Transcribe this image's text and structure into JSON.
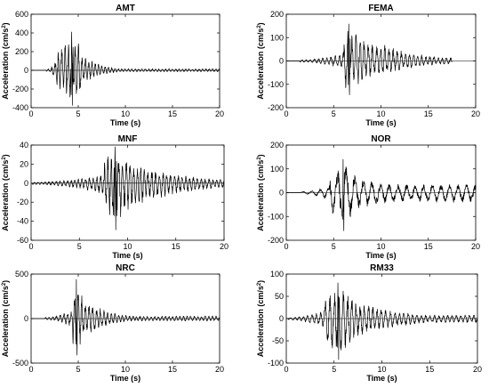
{
  "chart_data": [
    {
      "type": "line",
      "title": "AMT",
      "xlabel": "Time (s)",
      "ylabel_main": "Acceleration (cm/s",
      "ylabel_sup": "2",
      "ylabel_end": ")",
      "xlim": [
        0,
        20
      ],
      "ylim": [
        -400,
        600
      ],
      "xticks": [
        0,
        5,
        10,
        15,
        20
      ],
      "yticks": [
        -400,
        -200,
        0,
        200,
        400,
        600
      ],
      "grid": false,
      "series": [
        {
          "onset": 1.6,
          "end": 20,
          "peak_time": 4.3,
          "peak_pos": 410,
          "peak_neg": -375,
          "strong_start": 2.6,
          "strong_end": 5.3,
          "decay": 0.55,
          "coda": 0.05,
          "freq": 2.8,
          "seed": 11
        }
      ]
    },
    {
      "type": "line",
      "title": "FEMA",
      "xlabel": "Time (s)",
      "ylabel_main": "Acceleration (cm/s",
      "ylabel_sup": "2",
      "ylabel_end": ")",
      "xlim": [
        0,
        20
      ],
      "ylim": [
        -200,
        200
      ],
      "xticks": [
        0,
        5,
        10,
        15,
        20
      ],
      "yticks": [
        -200,
        -100,
        0,
        100,
        200
      ],
      "grid": false,
      "series": [
        {
          "onset": 1.4,
          "end": 17.5,
          "peak_time": 6.6,
          "peak_pos": 158,
          "peak_neg": -145,
          "strong_start": 6.1,
          "strong_end": 10.2,
          "decay": 0.25,
          "coda": 0.12,
          "freq": 2.3,
          "seed": 23
        }
      ]
    },
    {
      "type": "line",
      "title": "MNF",
      "xlabel": "Time (s)",
      "ylabel_main": "Acceleration (cm/s",
      "ylabel_sup": "2",
      "ylabel_end": ")",
      "xlim": [
        0,
        20
      ],
      "ylim": [
        -60,
        40
      ],
      "xticks": [
        0,
        5,
        10,
        15,
        20
      ],
      "yticks": [
        -60,
        -40,
        -20,
        0,
        20,
        40
      ],
      "grid": false,
      "series": [
        {
          "onset": 0.1,
          "end": 20,
          "peak_time": 8.7,
          "peak_pos": 38,
          "peak_neg": -49,
          "strong_start": 7.6,
          "strong_end": 11.2,
          "decay": 0.18,
          "coda": 0.15,
          "freq": 2.6,
          "seed": 37
        }
      ]
    },
    {
      "type": "line",
      "title": "NOR",
      "xlabel": "Time (s)",
      "ylabel_main": "Acceleration (cm/s",
      "ylabel_sup": "2",
      "ylabel_end": ")",
      "xlim": [
        0,
        20
      ],
      "ylim": [
        -200,
        200
      ],
      "xticks": [
        0,
        5,
        10,
        15,
        20
      ],
      "yticks": [
        -200,
        -100,
        0,
        100,
        200
      ],
      "grid": false,
      "series": [
        {
          "onset": 1.6,
          "end": 20,
          "peak_time": 6.0,
          "peak_pos": 140,
          "peak_neg": -160,
          "strong_start": 4.6,
          "strong_end": 7.3,
          "decay": 0.17,
          "coda": 0.3,
          "freq": 1.1,
          "seed": 41
        }
      ]
    },
    {
      "type": "line",
      "title": "NRC",
      "xlabel": "Time (s)",
      "ylabel_main": "Acceleration (cm/s",
      "ylabel_sup": "2",
      "ylabel_end": ")",
      "xlim": [
        0,
        20
      ],
      "ylim": [
        -500,
        500
      ],
      "xticks": [
        0,
        5,
        10,
        15,
        20
      ],
      "yticks": [
        -500,
        0,
        500
      ],
      "grid": false,
      "series": [
        {
          "onset": 1.4,
          "end": 20,
          "peak_time": 4.8,
          "peak_pos": 440,
          "peak_neg": -410,
          "strong_start": 4.4,
          "strong_end": 6.0,
          "decay": 0.4,
          "coda": 0.08,
          "freq": 2.6,
          "seed": 53
        }
      ]
    },
    {
      "type": "line",
      "title": "RM33",
      "xlabel": "Time (s)",
      "ylabel_main": "Acceleration (cm/s",
      "ylabel_sup": "2",
      "ylabel_end": ")",
      "xlim": [
        0,
        20
      ],
      "ylim": [
        -100,
        100
      ],
      "xticks": [
        0,
        5,
        10,
        15,
        20
      ],
      "yticks": [
        -100,
        -50,
        0,
        50,
        100
      ],
      "grid": false,
      "series": [
        {
          "onset": 0.2,
          "end": 20,
          "peak_time": 5.4,
          "peak_pos": 80,
          "peak_neg": -92,
          "strong_start": 3.9,
          "strong_end": 7.3,
          "decay": 0.2,
          "coda": 0.12,
          "freq": 2.2,
          "seed": 67
        }
      ]
    }
  ]
}
